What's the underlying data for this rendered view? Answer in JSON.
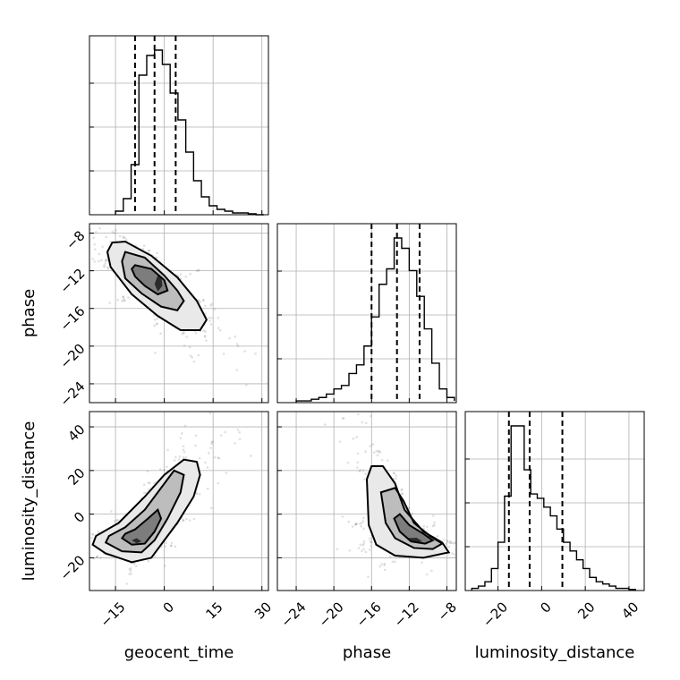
{
  "chart_data": {
    "type": "corner",
    "parameters": [
      {
        "name": "geocent_time",
        "label": "geocent_time",
        "range": [
          -23,
          32
        ],
        "ticks": [
          -15,
          0,
          15,
          30
        ],
        "tick_labels": [
          "−15",
          "0",
          "15",
          "30"
        ],
        "quantiles": [
          -9,
          -3,
          3.5
        ],
        "histogram": {
          "bin_edges": [
            -15,
            -12.6,
            -10.2,
            -7.8,
            -5.4,
            -3,
            -0.6,
            1.8,
            4.2,
            6.6,
            9,
            11.4,
            13.8,
            16.2,
            18.6,
            21,
            23.4,
            25.8,
            28.2,
            30.6
          ],
          "counts": [
            0.02,
            0.09,
            0.28,
            0.78,
            0.89,
            0.92,
            0.84,
            0.68,
            0.53,
            0.35,
            0.19,
            0.1,
            0.05,
            0.03,
            0.02,
            0.01,
            0.01,
            0.005,
            0
          ]
        }
      },
      {
        "name": "phase",
        "label": "phase",
        "range": [
          -26,
          -7
        ],
        "ticks": [
          -24,
          -20,
          -16,
          -12,
          -8
        ],
        "tick_labels": [
          "−24",
          "−20",
          "−16",
          "−12",
          "−8"
        ],
        "quantiles": [
          -16,
          -13.3,
          -10.9
        ],
        "histogram": {
          "bin_edges": [
            -24,
            -23.2,
            -22.4,
            -21.6,
            -20.8,
            -20,
            -19.2,
            -18.4,
            -17.6,
            -16.8,
            -16,
            -15.2,
            -14.4,
            -13.6,
            -12.8,
            -12,
            -11.2,
            -10.4,
            -9.6,
            -8.8,
            -8,
            -7.2
          ],
          "counts": [
            0.01,
            0.01,
            0.02,
            0.03,
            0.05,
            0.08,
            0.1,
            0.17,
            0.22,
            0.33,
            0.5,
            0.69,
            0.78,
            0.96,
            0.9,
            0.77,
            0.62,
            0.43,
            0.23,
            0.08,
            0.03,
            0.01
          ]
        }
      },
      {
        "name": "luminosity_distance",
        "label": "luminosity_distance",
        "range": [
          -35,
          47
        ],
        "ticks": [
          -20,
          0,
          20,
          40
        ],
        "tick_labels": [
          "−20",
          "0",
          "20",
          "40"
        ],
        "quantiles": [
          -15,
          -5.5,
          9.5
        ],
        "histogram": {
          "bin_edges": [
            -32,
            -29,
            -26,
            -23,
            -20,
            -17,
            -14,
            -11,
            -8,
            -5,
            -2,
            1,
            4,
            7,
            10,
            13,
            16,
            19,
            22,
            25,
            28,
            31,
            34,
            37,
            40,
            43
          ],
          "counts": [
            0.01,
            0.02,
            0.04,
            0.1,
            0.22,
            0.43,
            0.75,
            0.75,
            0.55,
            0.44,
            0.42,
            0.38,
            0.34,
            0.28,
            0.22,
            0.18,
            0.14,
            0.1,
            0.06,
            0.04,
            0.03,
            0.02,
            0.01,
            0.01,
            0.005
          ]
        }
      }
    ],
    "pairs": [
      {
        "x": "geocent_time",
        "y": "phase",
        "contours": [
          {
            "level": "outer",
            "points": [
              [
                -16,
                -9
              ],
              [
                -12,
                -8.9
              ],
              [
                -4,
                -10.4
              ],
              [
                4,
                -12.7
              ],
              [
                10,
                -15.2
              ],
              [
                13,
                -17.2
              ],
              [
                11,
                -18.3
              ],
              [
                5,
                -18.3
              ],
              [
                -2,
                -16.8
              ],
              [
                -10,
                -14.5
              ],
              [
                -16.5,
                -11.6
              ],
              [
                -17.5,
                -10
              ]
            ]
          },
          {
            "level": "middle",
            "points": [
              [
                -12,
                -10
              ],
              [
                -6,
                -10.6
              ],
              [
                0,
                -12.5
              ],
              [
                4,
                -14.1
              ],
              [
                6,
                -15.2
              ],
              [
                4,
                -16.2
              ],
              [
                -1,
                -15.8
              ],
              [
                -7,
                -14.4
              ],
              [
                -12,
                -12.8
              ],
              [
                -13,
                -11
              ]
            ]
          },
          {
            "level": "inner",
            "points": [
              [
                -9,
                -11.4
              ],
              [
                -4,
                -11.8
              ],
              [
                0,
                -13
              ],
              [
                1,
                -14.1
              ],
              [
                -2,
                -14.5
              ],
              [
                -6,
                -13.6
              ],
              [
                -9,
                -12.6
              ],
              [
                -10,
                -11.8
              ]
            ]
          },
          {
            "level": "core",
            "points": [
              [
                -2,
                -12.5
              ],
              [
                -0.8,
                -12.9
              ],
              [
                -0.6,
                -13.6
              ],
              [
                -2,
                -14.2
              ],
              [
                -3,
                -13.4
              ]
            ]
          }
        ]
      },
      {
        "x": "geocent_time",
        "y": "luminosity_distance",
        "contours": [
          {
            "level": "outer",
            "points": [
              [
                -22,
                -14
              ],
              [
                -18,
                -18
              ],
              [
                -10,
                -22
              ],
              [
                -4,
                -20
              ],
              [
                -1,
                -14
              ],
              [
                4,
                -4
              ],
              [
                9,
                8
              ],
              [
                11,
                18
              ],
              [
                10,
                24
              ],
              [
                6,
                25
              ],
              [
                0,
                18
              ],
              [
                -6,
                8
              ],
              [
                -14,
                -4
              ],
              [
                -21,
                -10
              ]
            ]
          },
          {
            "level": "middle",
            "points": [
              [
                -18,
                -13
              ],
              [
                -13,
                -17
              ],
              [
                -7,
                -17.5
              ],
              [
                -3,
                -12
              ],
              [
                1,
                -2
              ],
              [
                5,
                10
              ],
              [
                6,
                18
              ],
              [
                3,
                20
              ],
              [
                -1,
                12
              ],
              [
                -6,
                2
              ],
              [
                -12,
                -6
              ],
              [
                -17,
                -10
              ]
            ]
          },
          {
            "level": "inner",
            "points": [
              [
                -13,
                -11
              ],
              [
                -10,
                -14
              ],
              [
                -6,
                -13.5
              ],
              [
                -3,
                -8
              ],
              [
                -1,
                -2
              ],
              [
                -2,
                2
              ],
              [
                -5,
                -2
              ],
              [
                -9,
                -7
              ],
              [
                -12,
                -9
              ]
            ]
          },
          {
            "level": "core",
            "points": [
              [
                -10,
                -12
              ],
              [
                -8.5,
                -13.3
              ],
              [
                -7,
                -12.5
              ],
              [
                -8.5,
                -11
              ]
            ]
          }
        ]
      },
      {
        "x": "phase",
        "y": "luminosity_distance",
        "contours": [
          {
            "level": "outer",
            "points": [
              [
                -16.5,
                16
              ],
              [
                -16.3,
                -5
              ],
              [
                -15.5,
                -14
              ],
              [
                -13.5,
                -19
              ],
              [
                -10.5,
                -20
              ],
              [
                -7.8,
                -17.5
              ],
              [
                -8.5,
                -13
              ],
              [
                -10.5,
                -8
              ],
              [
                -12.5,
                2
              ],
              [
                -13.5,
                14
              ],
              [
                -14.8,
                22
              ],
              [
                -16,
                22
              ]
            ]
          },
          {
            "level": "middle",
            "points": [
              [
                -15,
                10
              ],
              [
                -14.5,
                -4
              ],
              [
                -13.5,
                -11
              ],
              [
                -11.5,
                -15.5
              ],
              [
                -9.5,
                -16
              ],
              [
                -8.5,
                -13.5
              ],
              [
                -9.8,
                -10
              ],
              [
                -11.5,
                -4
              ],
              [
                -12.6,
                6
              ],
              [
                -13.5,
                12
              ]
            ]
          },
          {
            "level": "inner",
            "points": [
              [
                -13.6,
                -2
              ],
              [
                -13,
                -8
              ],
              [
                -11.8,
                -12.5
              ],
              [
                -10.3,
                -13.5
              ],
              [
                -9.5,
                -12
              ],
              [
                -10.5,
                -9
              ],
              [
                -12,
                -5
              ],
              [
                -13,
                0
              ]
            ]
          },
          {
            "level": "core",
            "points": [
              [
                -12.3,
                -11
              ],
              [
                -11.4,
                -12.8
              ],
              [
                -10.6,
                -12.5
              ],
              [
                -11.2,
                -10.8
              ]
            ]
          }
        ]
      }
    ],
    "scatter_note": "",
    "xlabels": [
      "geocent_time",
      "phase",
      "luminosity_distance"
    ],
    "ylabels": [
      "",
      "phase",
      "luminosity_distance"
    ]
  }
}
